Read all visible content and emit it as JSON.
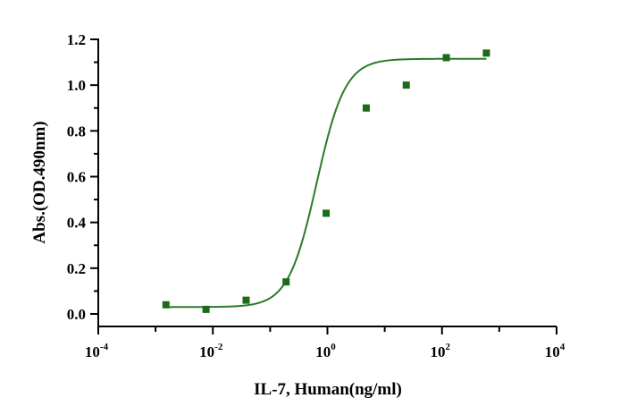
{
  "chart_data": {
    "type": "scatter",
    "xlabel": "IL-7, Human(ng/ml)",
    "ylabel": "Abs.(OD.490nm)",
    "x_scale": "log10",
    "xlim": [
      0.0001,
      10000
    ],
    "ylim": [
      -0.05,
      1.2
    ],
    "x_ticks": [
      {
        "base": "10",
        "exp": "-4",
        "value": 0.0001
      },
      {
        "base": "10",
        "exp": "-2",
        "value": 0.01
      },
      {
        "base": "10",
        "exp": "0",
        "value": 1
      },
      {
        "base": "10",
        "exp": "2",
        "value": 100
      },
      {
        "base": "10",
        "exp": "4",
        "value": 10000
      }
    ],
    "y_ticks": [
      {
        "label": "0.0",
        "value": 0.0
      },
      {
        "label": "0.2",
        "value": 0.2
      },
      {
        "label": "0.4",
        "value": 0.4
      },
      {
        "label": "0.6",
        "value": 0.6
      },
      {
        "label": "0.8",
        "value": 0.8
      },
      {
        "label": "1.0",
        "value": 1.0
      },
      {
        "label": "1.2",
        "value": 1.2
      }
    ],
    "grid": false,
    "series": [
      {
        "color": "#1a6b1a",
        "marker": "square",
        "x": [
          0.00152,
          0.0076,
          0.0381,
          0.19,
          0.95,
          4.76,
          23.8,
          119,
          595
        ],
        "y": [
          0.04,
          0.02,
          0.06,
          0.14,
          0.44,
          0.9,
          1.0,
          1.12,
          1.14
        ]
      }
    ],
    "fit": {
      "type": "4PL",
      "color": "#2a7a2a",
      "bottom": 0.03,
      "top": 1.115,
      "ec50": 0.65,
      "hill": 1.75,
      "x_range": [
        0.00152,
        595
      ]
    }
  }
}
